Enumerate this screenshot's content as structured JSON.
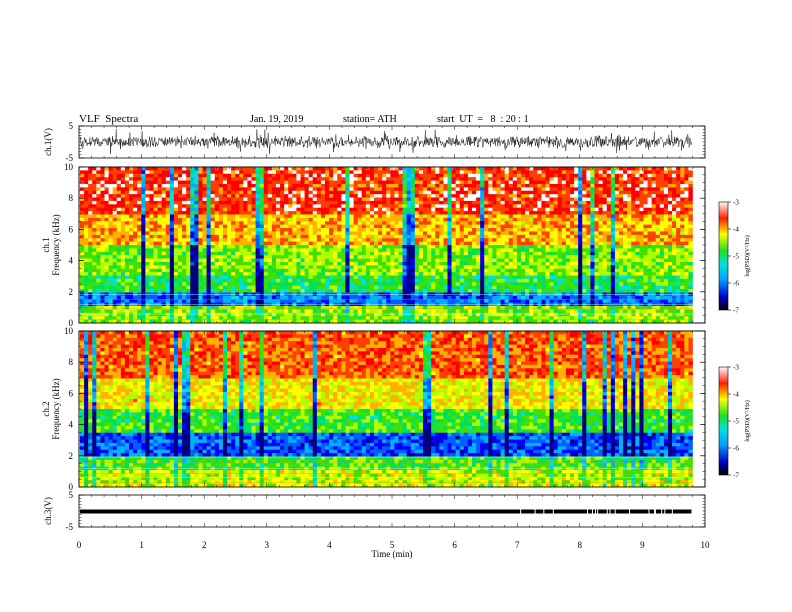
{
  "header": {
    "title": "VLF  Spectra",
    "date": "Jan. 19, 2019",
    "station": "station= ATH",
    "start": "start  UT  =   8  : 20 : 1"
  },
  "chart_data": [
    {
      "type": "line",
      "panel": "ch1-waveform",
      "ylabel": "ch.1(V)",
      "ylim": [
        -5,
        5
      ],
      "yticks": [
        "5",
        "-5"
      ],
      "xlim": [
        0,
        10
      ],
      "note_data_extent_min": 9.8
    },
    {
      "type": "heatmap",
      "panel": "ch1-spectrogram",
      "ylabel": "ch.1\nFrequency (kHz)",
      "ylabel_lines": [
        "ch.1",
        "Frequency  (kHz)"
      ],
      "ylim": [
        0,
        10
      ],
      "yticks": [
        "0",
        "2",
        "4",
        "6",
        "8",
        "10"
      ],
      "xlim": [
        0,
        10
      ],
      "colorbar": {
        "label": "log(PSD)(V²/Hz)",
        "range": [
          -7,
          -3
        ],
        "ticks": [
          "-3",
          "-4",
          "-5",
          "-6",
          "-7"
        ]
      }
    },
    {
      "type": "heatmap",
      "panel": "ch2-spectrogram",
      "ylabel": "ch.2\nFrequency (kHz)",
      "ylabel_lines": [
        "ch.2",
        "Frequency  (kHz)"
      ],
      "ylim": [
        0,
        10
      ],
      "yticks": [
        "0",
        "2",
        "4",
        "6",
        "8",
        "10"
      ],
      "xlim": [
        0,
        10
      ],
      "colorbar": {
        "label": "log(PSD)(V²/Hz)",
        "range": [
          -7,
          -3
        ],
        "ticks": [
          "-3",
          "-4",
          "-5",
          "-6",
          "-7"
        ]
      }
    },
    {
      "type": "line",
      "panel": "ch3-waveform",
      "ylabel": "ch.3(V)",
      "ylim": [
        -5,
        5
      ],
      "yticks": [
        "5",
        "-5"
      ],
      "xlim": [
        0,
        10
      ],
      "xlabel": "Time  (min)",
      "xticks": [
        "0",
        "1",
        "2",
        "3",
        "4",
        "5",
        "6",
        "7",
        "8",
        "9",
        "10"
      ]
    }
  ]
}
